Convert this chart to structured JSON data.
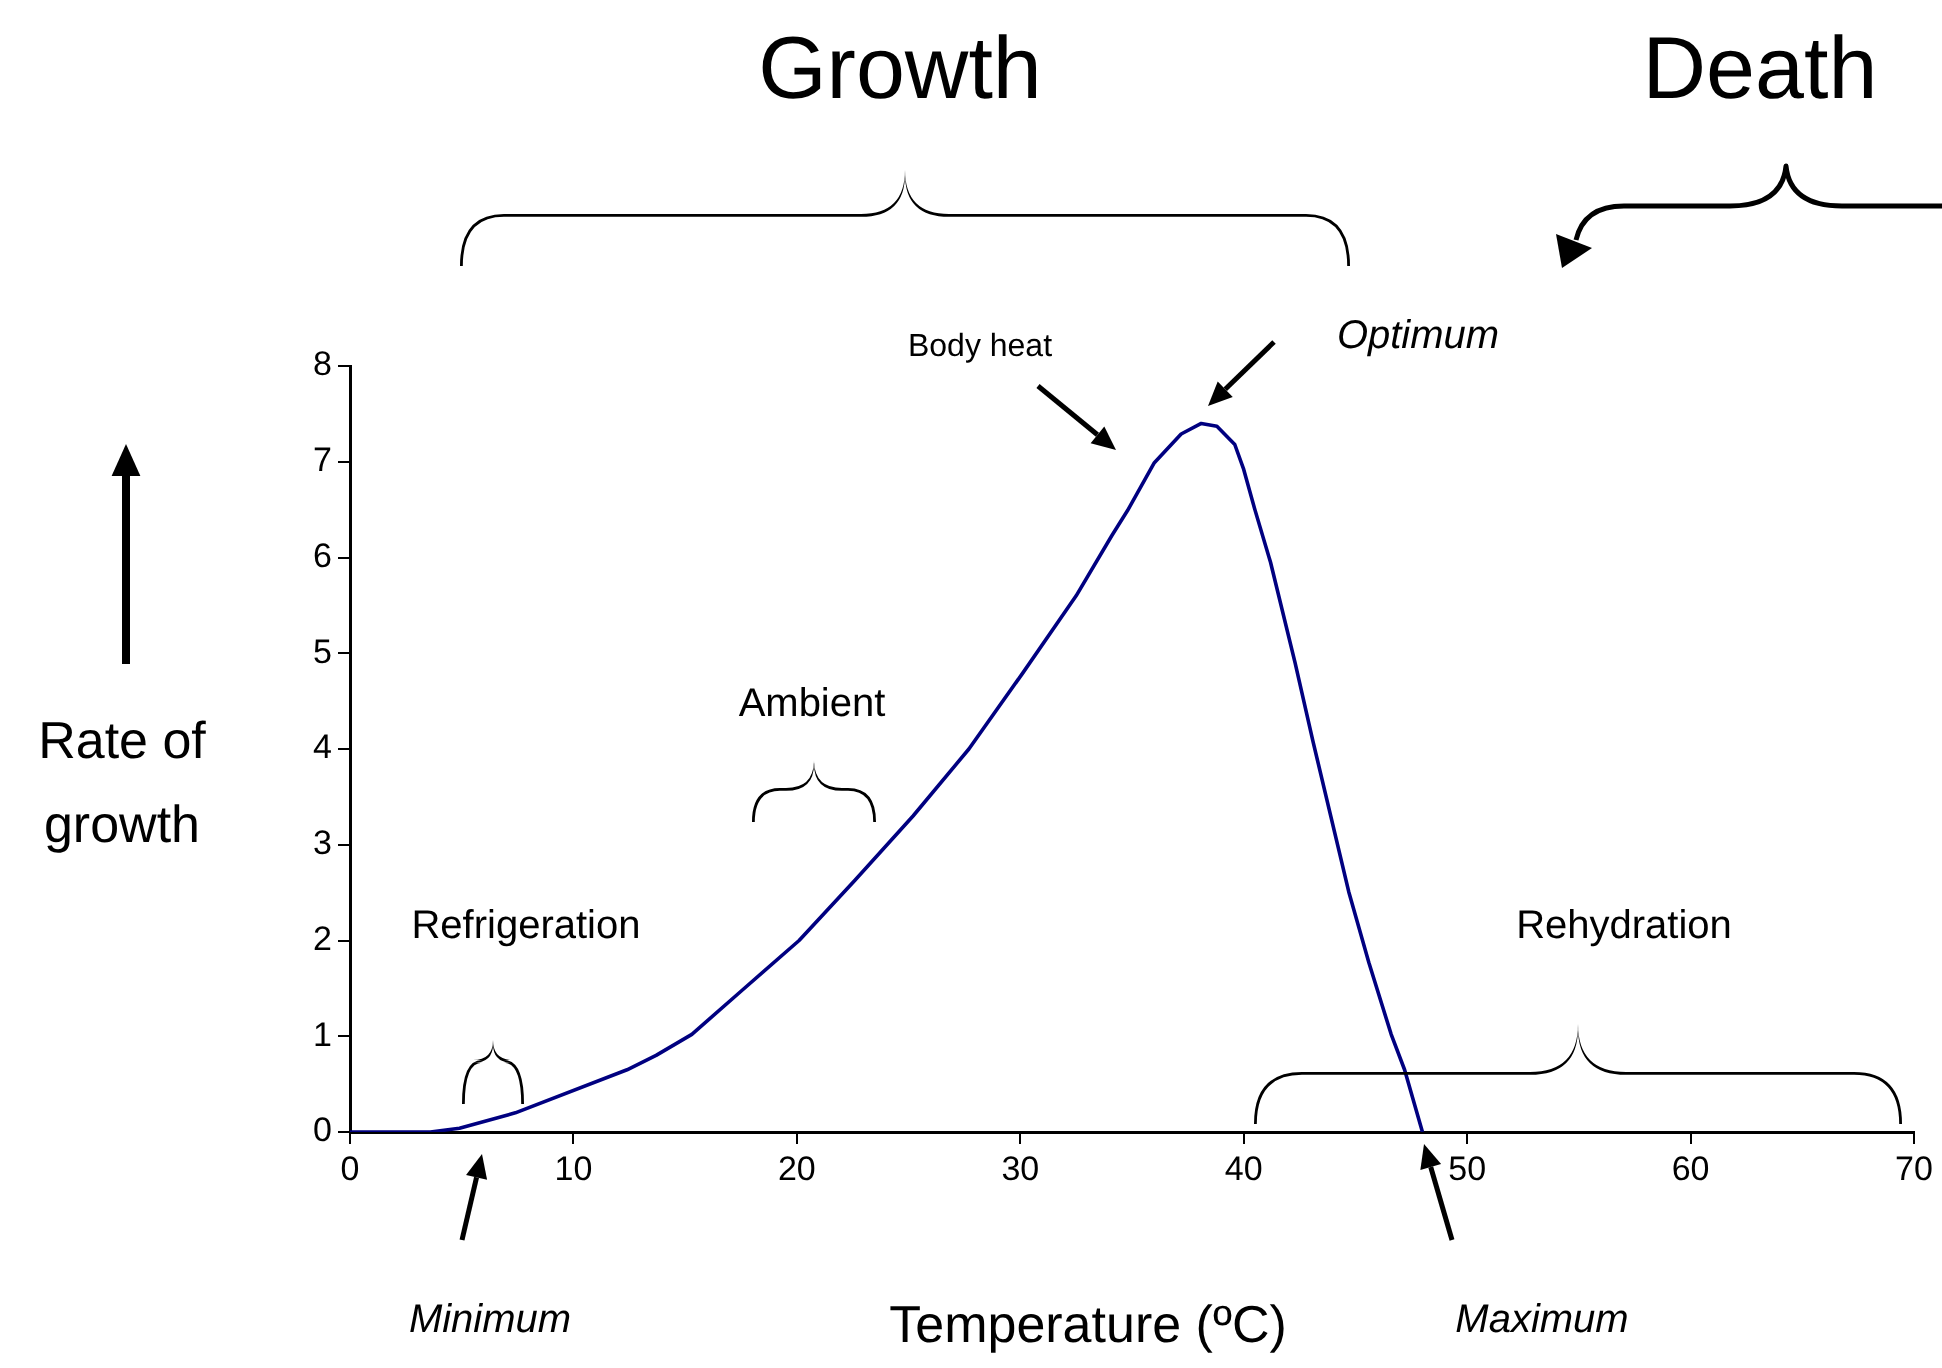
{
  "chart_data": {
    "type": "line",
    "xlabel": "Temperature (ºC)",
    "ylabel": "Rate of growth",
    "x": [
      0,
      3.6,
      4.9,
      7.4,
      12.4,
      13.7,
      15.3,
      17.5,
      20.1,
      22.6,
      25.2,
      27.7,
      30.1,
      32.5,
      34.1,
      34.8,
      36.0,
      37.2,
      38.1,
      38.8,
      39.6,
      40.0,
      40.5,
      41.2,
      42.3,
      43.1,
      44.7,
      45.6,
      46.6,
      47.2,
      48.0
    ],
    "series": [
      {
        "color": "#000080",
        "values": [
          0,
          0,
          0.04,
          0.2,
          0.65,
          0.8,
          1.02,
          1.47,
          2.0,
          2.63,
          3.3,
          4.0,
          4.79,
          5.6,
          6.23,
          6.49,
          6.99,
          7.29,
          7.4,
          7.37,
          7.18,
          6.92,
          6.5,
          5.95,
          4.9,
          4.08,
          2.51,
          1.77,
          1.02,
          0.65,
          0
        ]
      }
    ],
    "xlim": [
      0,
      70
    ],
    "xticks": [
      0,
      10,
      20,
      30,
      40,
      50,
      60,
      70
    ],
    "ylim": [
      0,
      8
    ],
    "yticks": [
      0,
      1,
      2,
      3,
      4,
      5,
      6,
      7,
      8
    ],
    "grid": false,
    "legend": false,
    "marker": "none",
    "line_style": "solid",
    "annotations": [
      "Growth",
      "Death",
      "Body heat",
      "Optimum",
      "Ambient",
      "Refrigeration",
      "Rehydration",
      "Minimum",
      "Maximum"
    ]
  }
}
